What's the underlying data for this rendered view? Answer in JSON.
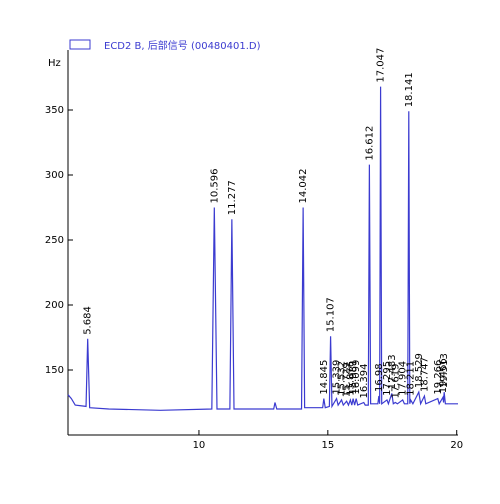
{
  "chart_data": {
    "type": "line",
    "legend": "ECD2 B, 后部信号 (00480401.D)",
    "y_label": "Hz",
    "color": "#3b3bd0",
    "xlim": [
      4.92,
      20.05
    ],
    "ylim": [
      100,
      400
    ],
    "xticks": [
      10,
      15,
      20
    ],
    "yticks": [
      150,
      200,
      250,
      300,
      350
    ],
    "x": [
      4.92,
      5.05,
      5.2,
      5.62,
      5.684,
      5.76,
      6.5,
      8.5,
      10.5,
      10.596,
      10.7,
      11.2,
      11.277,
      11.36,
      12.9,
      12.95,
      13.02,
      13.98,
      14.042,
      14.1,
      14.8,
      14.845,
      14.9,
      15.06,
      15.107,
      15.16,
      15.339,
      15.4,
      15.532,
      15.6,
      15.729,
      15.8,
      15.876,
      15.93,
      15.981,
      16.04,
      16.099,
      16.16,
      16.394,
      16.45,
      16.57,
      16.612,
      16.66,
      16.94,
      16.98,
      17.01,
      17.047,
      17.09,
      17.295,
      17.35,
      17.483,
      17.54,
      17.619,
      17.7,
      17.904,
      17.97,
      18.1,
      18.141,
      18.18,
      18.211,
      18.3,
      18.529,
      18.6,
      18.747,
      18.8,
      19.266,
      19.32,
      19.466,
      19.49,
      19.513,
      19.56,
      20.05
    ],
    "values": [
      131,
      128,
      123,
      122,
      174,
      121,
      120,
      119,
      120,
      275,
      120,
      120,
      266,
      120,
      120,
      125,
      120,
      120,
      275,
      121,
      121,
      128,
      121,
      122,
      176,
      122,
      128,
      123,
      127,
      123,
      126,
      123,
      127,
      123,
      128,
      123,
      128,
      123,
      125,
      123,
      123,
      308,
      124,
      124,
      130,
      124,
      368,
      124,
      127,
      124,
      132,
      124,
      125,
      124,
      127,
      124,
      124,
      349,
      124,
      127,
      124,
      133,
      124,
      130,
      124,
      128,
      124,
      129,
      125,
      133,
      124,
      124
    ],
    "peaks": [
      5.684,
      10.596,
      11.277,
      14.042,
      14.845,
      15.107,
      15.339,
      15.532,
      15.729,
      15.876,
      15.981,
      16.099,
      16.394,
      16.612,
      16.98,
      17.047,
      17.295,
      17.483,
      17.619,
      17.904,
      18.141,
      18.211,
      18.529,
      18.747,
      19.266,
      19.466,
      19.513
    ]
  }
}
